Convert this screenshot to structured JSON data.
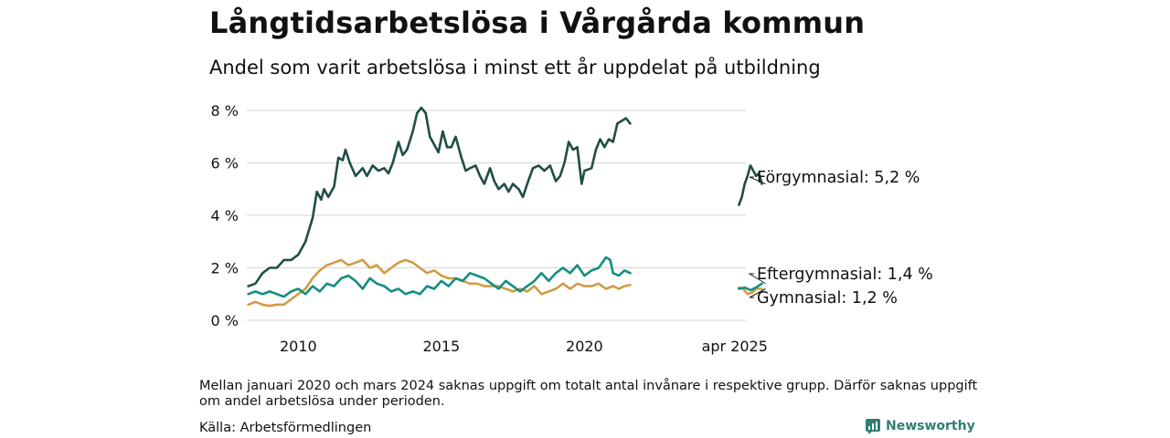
{
  "header": {
    "title": "Långtidsarbetslösa i Vårgårda kommun",
    "subtitle": "Andel som varit arbetslösa i minst ett år uppdelat på utbildning"
  },
  "footer": {
    "note": "Mellan januari 2020 och mars 2024 saknas uppgift om totalt antal invånare i respektive grupp. Därför saknas uppgift om andel arbetslösa under perioden.",
    "source": "Källa: Arbetsförmedlingen",
    "brand": "Newsworthy"
  },
  "chart_data": {
    "type": "line",
    "x_unit": "year",
    "xlim": [
      2008.2,
      2026.8
    ],
    "ylim": [
      0,
      8
    ],
    "y_ticks": [
      0,
      2,
      4,
      6,
      8
    ],
    "y_tick_labels": [
      "0 %",
      "2 %",
      "4 %",
      "6 %",
      "8 %"
    ],
    "x_tick_positions": [
      2010,
      2015,
      2020,
      2025.25
    ],
    "x_tick_labels": [
      "2010",
      "2015",
      "2020",
      "apr 2025"
    ],
    "grid": "horizontal",
    "legend": "direct labels at right end of lines",
    "series": [
      {
        "name": "Förgymnasial",
        "end_label": "Förgymnasial: 5,2 %",
        "color": "#1f4e45",
        "segments": [
          [
            [
              2008.25,
              1.3
            ],
            [
              2008.5,
              1.4
            ],
            [
              2008.75,
              1.8
            ],
            [
              2009,
              2.0
            ],
            [
              2009.25,
              2.0
            ],
            [
              2009.5,
              2.3
            ],
            [
              2009.75,
              2.3
            ],
            [
              2010,
              2.5
            ],
            [
              2010.25,
              3.0
            ],
            [
              2010.5,
              3.9
            ],
            [
              2010.65,
              4.9
            ],
            [
              2010.8,
              4.6
            ],
            [
              2010.9,
              5.0
            ],
            [
              2011.05,
              4.7
            ],
            [
              2011.25,
              5.1
            ],
            [
              2011.4,
              6.2
            ],
            [
              2011.55,
              6.1
            ],
            [
              2011.65,
              6.5
            ],
            [
              2011.8,
              6.0
            ],
            [
              2012,
              5.5
            ],
            [
              2012.25,
              5.8
            ],
            [
              2012.4,
              5.5
            ],
            [
              2012.6,
              5.9
            ],
            [
              2012.8,
              5.7
            ],
            [
              2013,
              5.8
            ],
            [
              2013.15,
              5.6
            ],
            [
              2013.3,
              6.0
            ],
            [
              2013.5,
              6.8
            ],
            [
              2013.65,
              6.3
            ],
            [
              2013.8,
              6.5
            ],
            [
              2014,
              7.2
            ],
            [
              2014.15,
              7.9
            ],
            [
              2014.3,
              8.1
            ],
            [
              2014.45,
              7.9
            ],
            [
              2014.6,
              7.0
            ],
            [
              2014.75,
              6.7
            ],
            [
              2014.9,
              6.4
            ],
            [
              2015.05,
              7.2
            ],
            [
              2015.2,
              6.6
            ],
            [
              2015.35,
              6.6
            ],
            [
              2015.5,
              7.0
            ],
            [
              2015.7,
              6.2
            ],
            [
              2015.85,
              5.7
            ],
            [
              2016,
              5.8
            ],
            [
              2016.2,
              5.9
            ],
            [
              2016.35,
              5.5
            ],
            [
              2016.5,
              5.2
            ],
            [
              2016.7,
              5.8
            ],
            [
              2016.85,
              5.3
            ],
            [
              2017,
              5.0
            ],
            [
              2017.2,
              5.2
            ],
            [
              2017.35,
              4.9
            ],
            [
              2017.5,
              5.2
            ],
            [
              2017.7,
              5.0
            ],
            [
              2017.85,
              4.7
            ],
            [
              2018,
              5.2
            ],
            [
              2018.2,
              5.8
            ],
            [
              2018.4,
              5.9
            ],
            [
              2018.6,
              5.7
            ],
            [
              2018.8,
              5.9
            ],
            [
              2019,
              5.3
            ],
            [
              2019.15,
              5.5
            ],
            [
              2019.3,
              6.0
            ],
            [
              2019.45,
              6.8
            ],
            [
              2019.6,
              6.5
            ],
            [
              2019.75,
              6.6
            ],
            [
              2019.9,
              5.2
            ],
            [
              2020,
              5.7
            ],
            [
              2020.25,
              5.8
            ],
            [
              2020.4,
              6.5
            ],
            [
              2020.55,
              6.9
            ],
            [
              2020.7,
              6.6
            ],
            [
              2020.85,
              6.9
            ],
            [
              2021,
              6.8
            ],
            [
              2021.15,
              7.5
            ],
            [
              2021.3,
              7.6
            ],
            [
              2021.45,
              7.7
            ],
            [
              2021.6,
              7.5
            ]
          ],
          [
            [
              2025.4,
              4.4
            ],
            [
              2025.5,
              4.7
            ],
            [
              2025.6,
              5.2
            ],
            [
              2025.7,
              5.5
            ],
            [
              2025.8,
              5.9
            ],
            [
              2025.9,
              5.7
            ],
            [
              2026.0,
              5.5
            ],
            [
              2026.1,
              5.6
            ],
            [
              2026.2,
              5.2
            ]
          ]
        ]
      },
      {
        "name": "Eftergymnasial",
        "end_label": "Eftergymnasial: 1,4 %",
        "color": "#138f7f",
        "segments": [
          [
            [
              2008.25,
              1.0
            ],
            [
              2008.5,
              1.1
            ],
            [
              2008.75,
              1.0
            ],
            [
              2009,
              1.1
            ],
            [
              2009.25,
              1.0
            ],
            [
              2009.5,
              0.9
            ],
            [
              2009.75,
              1.1
            ],
            [
              2010,
              1.2
            ],
            [
              2010.25,
              1.0
            ],
            [
              2010.5,
              1.3
            ],
            [
              2010.75,
              1.1
            ],
            [
              2011,
              1.4
            ],
            [
              2011.25,
              1.3
            ],
            [
              2011.5,
              1.6
            ],
            [
              2011.75,
              1.7
            ],
            [
              2012,
              1.5
            ],
            [
              2012.25,
              1.2
            ],
            [
              2012.5,
              1.6
            ],
            [
              2012.75,
              1.4
            ],
            [
              2013,
              1.3
            ],
            [
              2013.25,
              1.1
            ],
            [
              2013.5,
              1.2
            ],
            [
              2013.75,
              1.0
            ],
            [
              2014,
              1.1
            ],
            [
              2014.25,
              1.0
            ],
            [
              2014.5,
              1.3
            ],
            [
              2014.75,
              1.2
            ],
            [
              2015,
              1.5
            ],
            [
              2015.25,
              1.3
            ],
            [
              2015.5,
              1.6
            ],
            [
              2015.75,
              1.5
            ],
            [
              2016,
              1.8
            ],
            [
              2016.25,
              1.7
            ],
            [
              2016.5,
              1.6
            ],
            [
              2016.75,
              1.4
            ],
            [
              2017,
              1.2
            ],
            [
              2017.25,
              1.5
            ],
            [
              2017.5,
              1.3
            ],
            [
              2017.75,
              1.1
            ],
            [
              2018,
              1.3
            ],
            [
              2018.25,
              1.5
            ],
            [
              2018.5,
              1.8
            ],
            [
              2018.75,
              1.5
            ],
            [
              2019,
              1.8
            ],
            [
              2019.25,
              2.0
            ],
            [
              2019.5,
              1.8
            ],
            [
              2019.75,
              2.1
            ],
            [
              2020,
              1.7
            ],
            [
              2020.25,
              1.9
            ],
            [
              2020.5,
              2.0
            ],
            [
              2020.75,
              2.4
            ],
            [
              2020.9,
              2.3
            ],
            [
              2021,
              1.8
            ],
            [
              2021.2,
              1.7
            ],
            [
              2021.4,
              1.9
            ],
            [
              2021.6,
              1.8
            ]
          ],
          [
            [
              2025.4,
              1.2
            ],
            [
              2025.6,
              1.25
            ],
            [
              2025.8,
              1.15
            ],
            [
              2026.0,
              1.25
            ],
            [
              2026.2,
              1.4
            ]
          ]
        ]
      },
      {
        "name": "Gymnasial",
        "end_label": "Gymnasial: 1,2 %",
        "color": "#d29b45",
        "segments": [
          [
            [
              2008.25,
              0.6
            ],
            [
              2008.5,
              0.7
            ],
            [
              2008.75,
              0.6
            ],
            [
              2009,
              0.55
            ],
            [
              2009.25,
              0.6
            ],
            [
              2009.5,
              0.6
            ],
            [
              2009.75,
              0.8
            ],
            [
              2010,
              1.0
            ],
            [
              2010.25,
              1.2
            ],
            [
              2010.5,
              1.6
            ],
            [
              2010.75,
              1.9
            ],
            [
              2011,
              2.1
            ],
            [
              2011.25,
              2.2
            ],
            [
              2011.5,
              2.3
            ],
            [
              2011.75,
              2.1
            ],
            [
              2012,
              2.2
            ],
            [
              2012.25,
              2.3
            ],
            [
              2012.5,
              2.0
            ],
            [
              2012.75,
              2.1
            ],
            [
              2013,
              1.8
            ],
            [
              2013.25,
              2.0
            ],
            [
              2013.5,
              2.2
            ],
            [
              2013.75,
              2.3
            ],
            [
              2014,
              2.2
            ],
            [
              2014.25,
              2.0
            ],
            [
              2014.5,
              1.8
            ],
            [
              2014.75,
              1.9
            ],
            [
              2015,
              1.7
            ],
            [
              2015.25,
              1.6
            ],
            [
              2015.5,
              1.6
            ],
            [
              2015.75,
              1.5
            ],
            [
              2016,
              1.4
            ],
            [
              2016.25,
              1.4
            ],
            [
              2016.5,
              1.3
            ],
            [
              2016.75,
              1.3
            ],
            [
              2017,
              1.3
            ],
            [
              2017.25,
              1.2
            ],
            [
              2017.5,
              1.1
            ],
            [
              2017.75,
              1.2
            ],
            [
              2018,
              1.1
            ],
            [
              2018.25,
              1.3
            ],
            [
              2018.5,
              1.0
            ],
            [
              2018.75,
              1.1
            ],
            [
              2019,
              1.2
            ],
            [
              2019.25,
              1.4
            ],
            [
              2019.5,
              1.2
            ],
            [
              2019.75,
              1.4
            ],
            [
              2020,
              1.3
            ],
            [
              2020.25,
              1.3
            ],
            [
              2020.5,
              1.4
            ],
            [
              2020.75,
              1.2
            ],
            [
              2021,
              1.3
            ],
            [
              2021.2,
              1.2
            ],
            [
              2021.4,
              1.3
            ],
            [
              2021.6,
              1.35
            ]
          ],
          [
            [
              2025.4,
              1.25
            ],
            [
              2025.55,
              1.2
            ],
            [
              2025.7,
              1.0
            ],
            [
              2025.85,
              1.05
            ],
            [
              2026.0,
              1.2
            ],
            [
              2026.2,
              1.2
            ]
          ]
        ]
      }
    ]
  }
}
